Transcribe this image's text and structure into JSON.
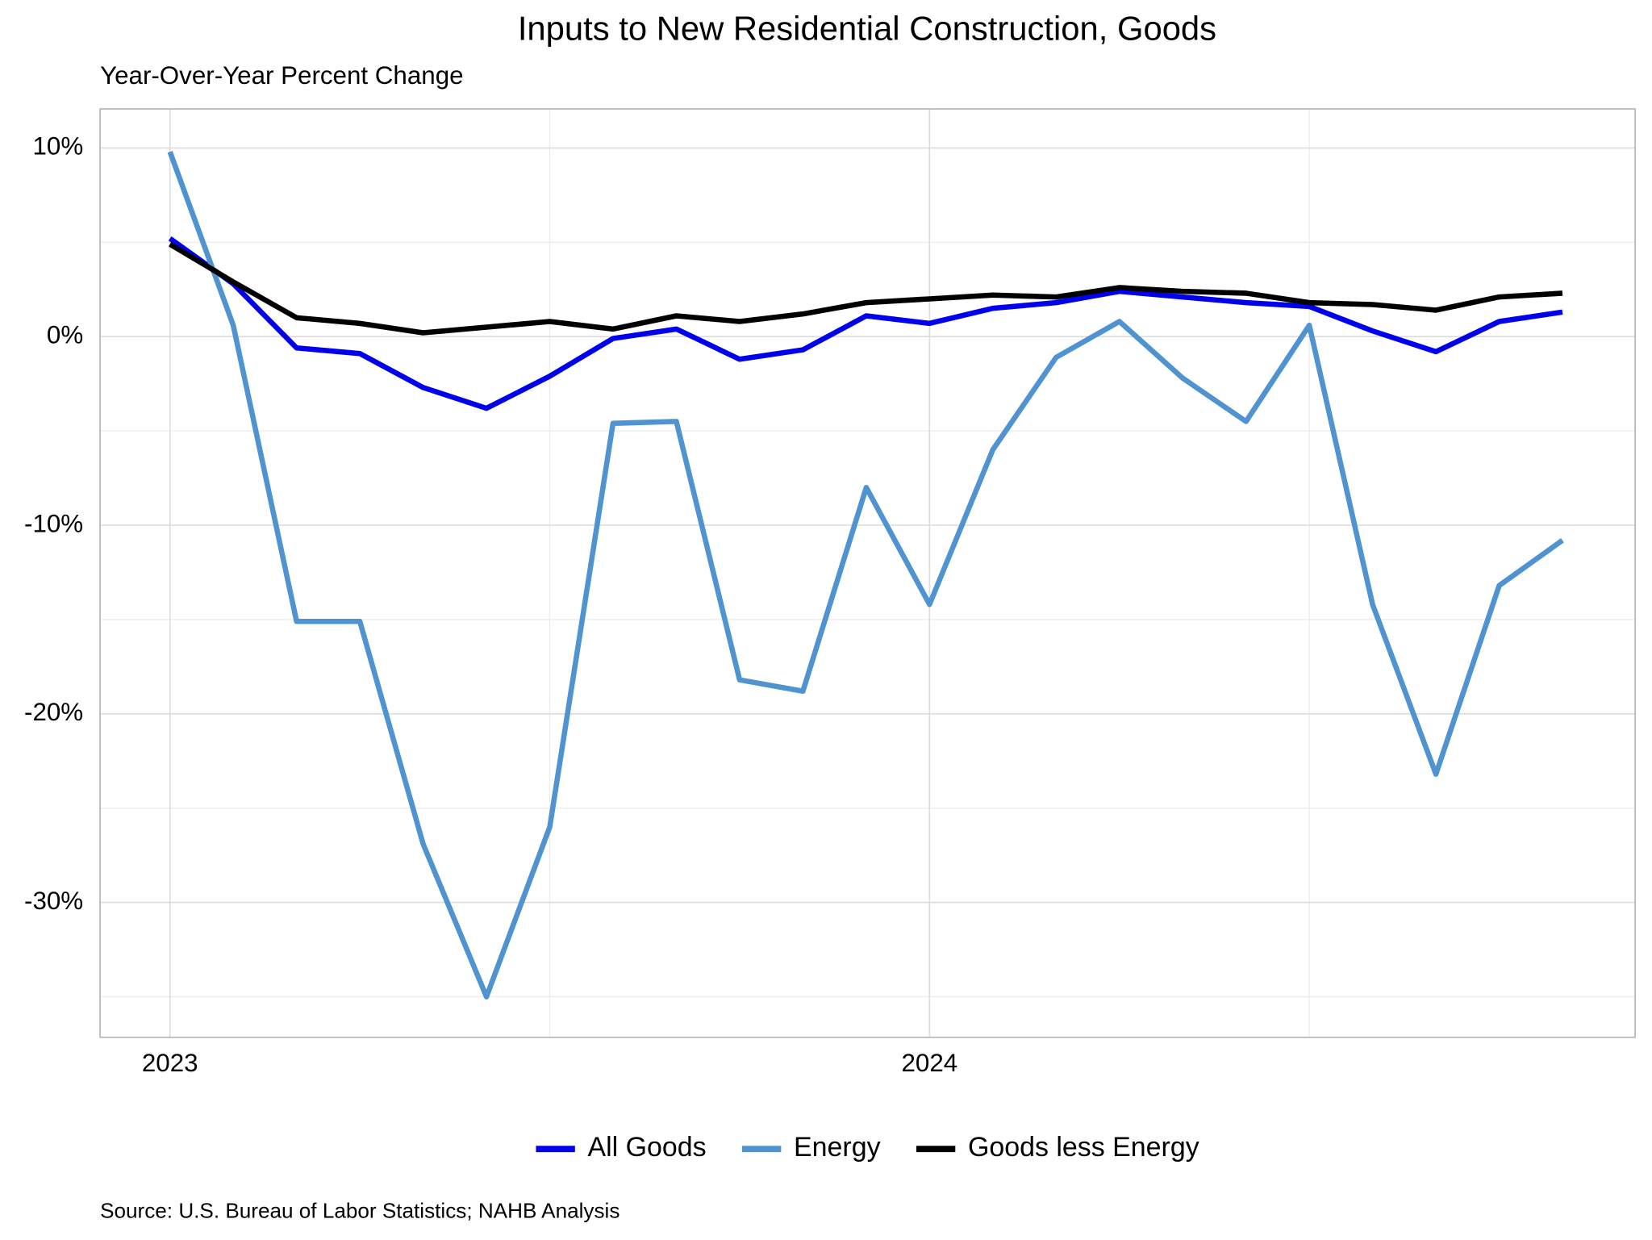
{
  "chart_data": {
    "type": "line",
    "title": "Inputs to New Residential Construction, Goods",
    "subtitle": "Year-Over-Year Percent Change",
    "source": "Source: U.S. Bureau of Labor Statistics; NAHB Analysis",
    "x": [
      2023,
      2023.0833,
      2023.1667,
      2023.25,
      2023.3333,
      2023.4167,
      2023.5,
      2023.5833,
      2023.6667,
      2023.75,
      2023.8333,
      2023.9167,
      2024,
      2024.0833,
      2024.1667,
      2024.25,
      2024.3333,
      2024.4167,
      2024.5,
      2024.5833,
      2024.6667,
      2024.75,
      2024.8333
    ],
    "series": [
      {
        "name": "All Goods",
        "color": "#0000ee",
        "values": [
          5.2,
          2.8,
          -0.6,
          -0.9,
          -2.7,
          -3.8,
          -2.1,
          -0.1,
          0.4,
          -1.2,
          -0.7,
          1.1,
          0.7,
          1.5,
          1.8,
          2.4,
          2.1,
          1.8,
          1.6,
          0.3,
          -0.8,
          0.8,
          1.3
        ]
      },
      {
        "name": "Energy",
        "color": "#4f93d0",
        "values": [
          9.8,
          0.6,
          -15.1,
          -15.1,
          -26.9,
          -35.0,
          -26.0,
          -4.6,
          -4.5,
          -18.2,
          -18.8,
          -8.0,
          -14.2,
          -6.0,
          -1.1,
          0.8,
          -2.2,
          -4.5,
          0.6,
          -14.2,
          -23.2,
          -13.2,
          -10.8
        ]
      },
      {
        "name": "Goods less Energy",
        "color": "#000000",
        "values": [
          4.9,
          2.9,
          1.0,
          0.7,
          0.2,
          0.5,
          0.8,
          0.4,
          1.1,
          0.8,
          1.2,
          1.8,
          2.0,
          2.2,
          2.1,
          2.6,
          2.4,
          2.3,
          1.8,
          1.7,
          1.4,
          2.1,
          2.3
        ]
      }
    ],
    "xlim": [
      2022.908,
      2024.929
    ],
    "xticks": [
      2023,
      2024
    ],
    "xminor_ticks": [
      2023.5,
      2024.5
    ],
    "ylim": [
      -37.15,
      12.07
    ],
    "yticks": [
      {
        "value": 10,
        "label": "10%"
      },
      {
        "value": 0,
        "label": "0%"
      },
      {
        "value": -10,
        "label": "-10%"
      },
      {
        "value": -20,
        "label": "-20%"
      },
      {
        "value": -30,
        "label": "-30%"
      }
    ],
    "yminor_ticks": [
      5,
      -5,
      -15,
      -25,
      -35
    ],
    "grid": true,
    "legend": "bottom"
  }
}
